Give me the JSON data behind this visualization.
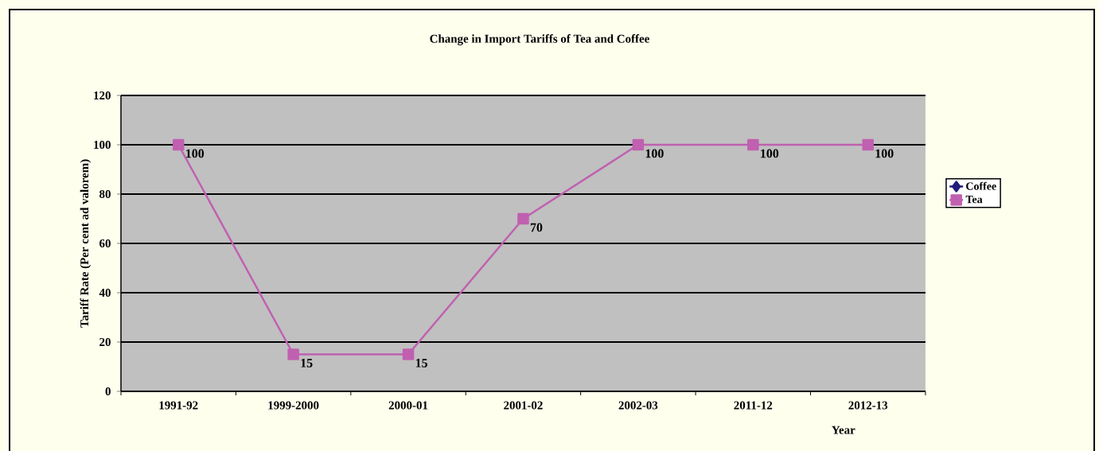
{
  "chart_data": {
    "type": "line",
    "title": "Change in Import Tariffs of Tea and Coffee",
    "xlabel": "Year",
    "ylabel": "Tariff Rate (Per cent ad valorem)",
    "categories": [
      "1991-92",
      "1999-2000",
      "2000-01",
      "2001-02",
      "2002-03",
      "2011-12",
      "2012-13"
    ],
    "series": [
      {
        "name": "Coffee",
        "color": "#1f1f7a",
        "marker": "diamond",
        "values": [
          null,
          null,
          null,
          null,
          null,
          null,
          null
        ]
      },
      {
        "name": "Tea",
        "color": "#c060b0",
        "marker": "square",
        "values": [
          100,
          15,
          15,
          70,
          100,
          100,
          100
        ]
      }
    ],
    "ylim": [
      0,
      120
    ],
    "yticks": [
      0,
      20,
      40,
      60,
      80,
      100,
      120
    ],
    "grid": "y",
    "legend": "right",
    "data_labels": true,
    "line_style": "solid"
  }
}
